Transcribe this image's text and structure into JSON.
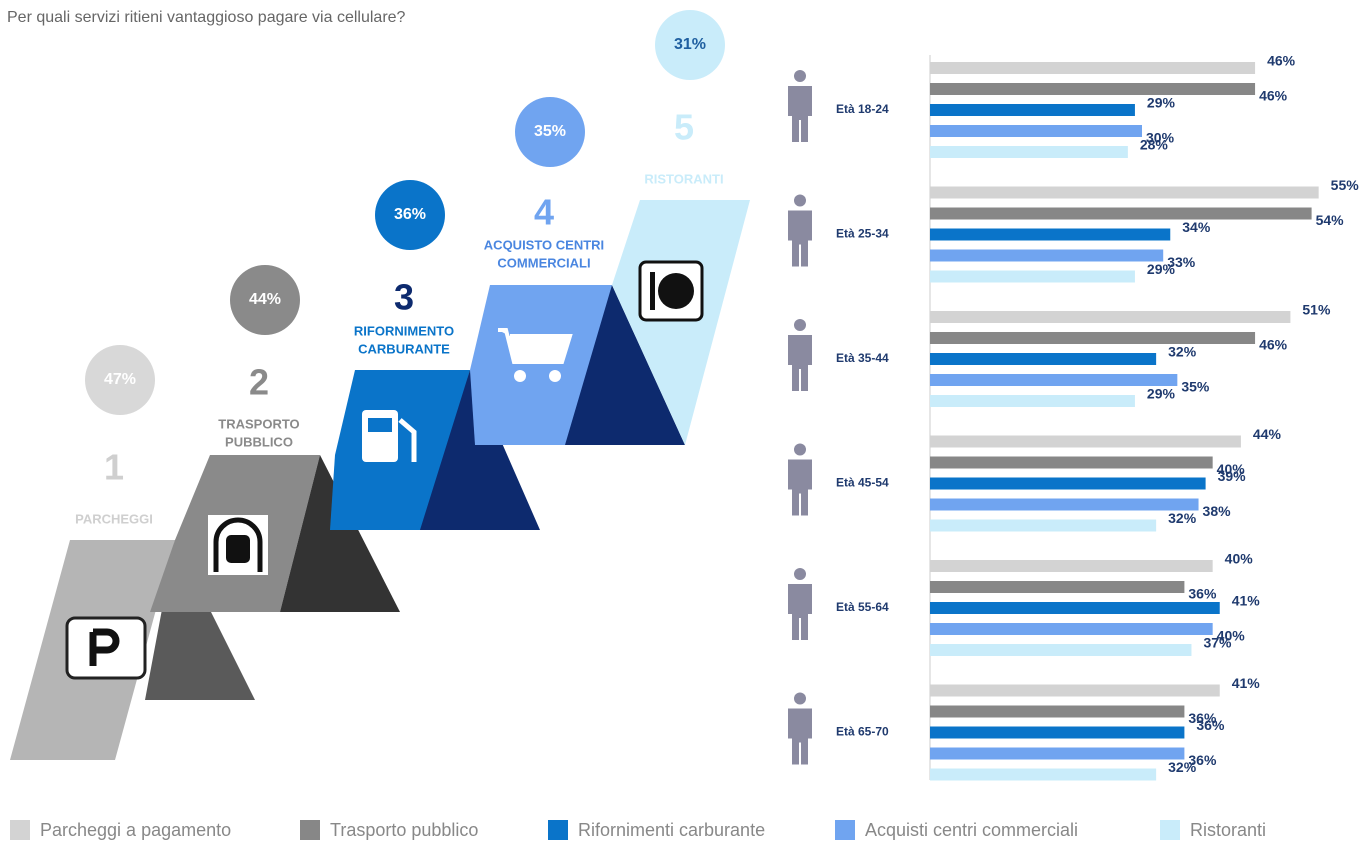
{
  "question": "Per quali servizi ritieni vantaggioso pagare via cellulare?",
  "ranking": [
    {
      "rank": "1",
      "label": [
        "PARCHEGGI"
      ],
      "share": "47%"
    },
    {
      "rank": "2",
      "label": [
        "TRASPORTO",
        "PUBBLICO"
      ],
      "share": "44%"
    },
    {
      "rank": "3",
      "label": [
        "RIFORNIMENTO",
        "CARBURANTE"
      ],
      "share": "36%"
    },
    {
      "rank": "4",
      "label": [
        "ACQUISTO CENTRI",
        "COMMERCIALI"
      ],
      "share": "35%"
    },
    {
      "rank": "5",
      "label": [
        "RISTORANTI"
      ],
      "share": "31%"
    }
  ],
  "chart_data": {
    "type": "hbar",
    "categories": [
      "Età 18-24",
      "Età 25-34",
      "Età 35-44",
      "Età 45-54",
      "Età 55-64",
      "Età 65-70"
    ],
    "xlim": [
      0,
      60
    ],
    "series": [
      {
        "name": "Parcheggi a pagamento",
        "color": "#d3d3d3",
        "values": [
          46,
          55,
          51,
          44,
          40,
          41
        ],
        "value_labels": [
          "46%",
          "55%",
          "51%",
          "44%",
          "40%",
          "41%"
        ]
      },
      {
        "name": "Trasporto pubblico",
        "color": "#878787",
        "values": [
          46,
          54,
          46,
          40,
          36,
          36
        ],
        "value_labels": [
          "46%",
          "54%",
          "46%",
          "40%",
          "36%",
          "36%"
        ]
      },
      {
        "name": "Rifornimenti carburante",
        "color": "#0a74c9",
        "values": [
          29,
          34,
          32,
          39,
          41,
          36
        ],
        "value_labels": [
          "29%",
          "34%",
          "32%",
          "39%",
          "41%",
          "36%"
        ]
      },
      {
        "name": "Acquisti centri commerciali",
        "color": "#70a4f0",
        "values": [
          30,
          33,
          35,
          38,
          40,
          36
        ],
        "value_labels": [
          "30%",
          "33%",
          "35%",
          "38%",
          "40%",
          "36%"
        ]
      },
      {
        "name": "Ristoranti",
        "color": "#c9ecfa",
        "values": [
          28,
          29,
          29,
          32,
          37,
          32
        ],
        "value_labels": [
          "28%",
          "29%",
          "29%",
          "32%",
          "37%",
          "32%"
        ]
      }
    ]
  }
}
